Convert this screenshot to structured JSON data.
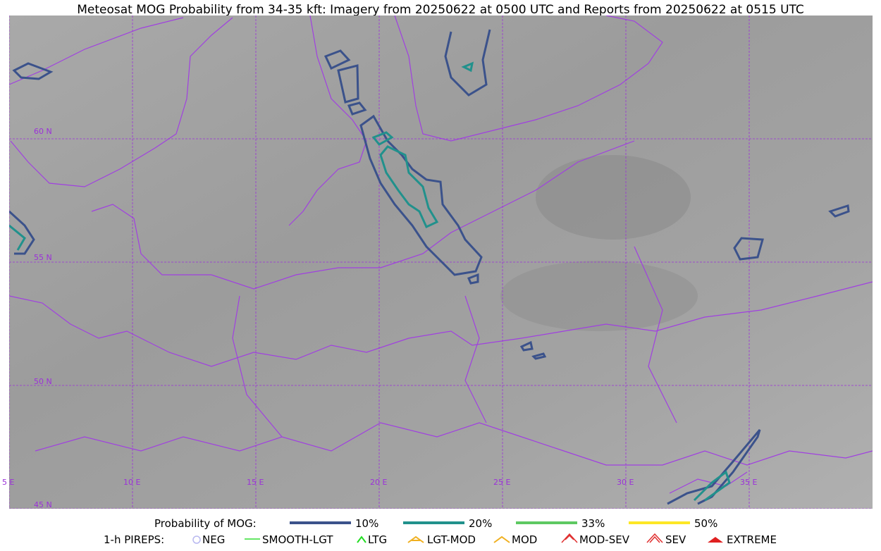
{
  "title": "Meteosat MOG Probability from 34-35 kft: Imagery from 20250622 at 0500 UTC and Reports from 20250622 at 0515 UTC",
  "map": {
    "lat_labels": [
      "60 N",
      "55 N",
      "50 N",
      "45 N"
    ],
    "lon_labels": [
      "5 E",
      "10 E",
      "15 E",
      "20 E",
      "25 E",
      "30 E",
      "35 E"
    ]
  },
  "legend": {
    "title": "Probability of MOG:",
    "items": [
      "10%",
      "20%",
      "33%",
      "50%"
    ]
  },
  "pireps": {
    "title": "1-h PIREPS:",
    "items": [
      "NEG",
      "SMOOTH-LGT",
      "LTG",
      "LGT-MOD",
      "MOD",
      "MOD-SEV",
      "SEV",
      "EXTREME"
    ]
  }
}
